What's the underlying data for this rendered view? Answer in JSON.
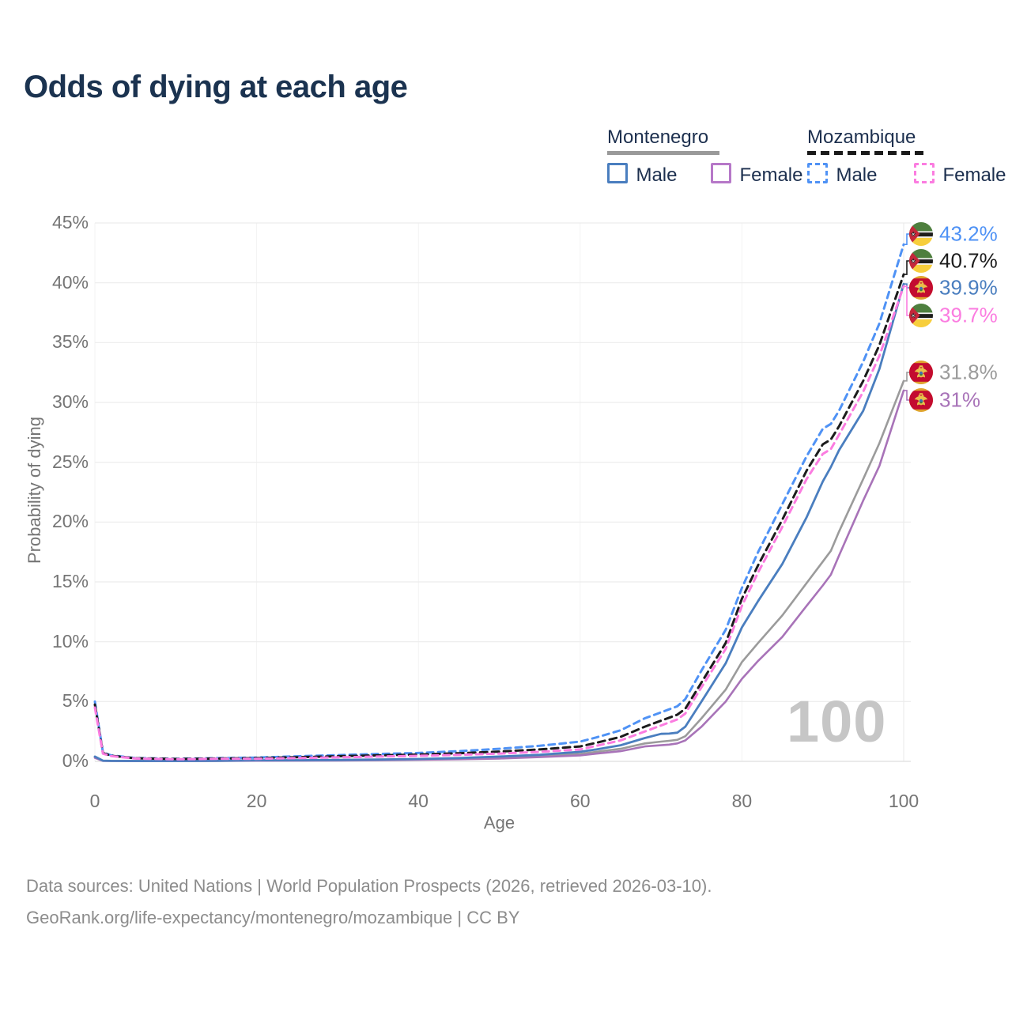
{
  "title": "Odds of dying at each age",
  "legend": {
    "montenegro": {
      "name": "Montenegro",
      "male": "Male",
      "female": "Female"
    },
    "mozambique": {
      "name": "Mozambique",
      "male": "Male",
      "female": "Female"
    }
  },
  "axis": {
    "x_label": "Age",
    "y_label": "Probability of dying"
  },
  "watermark": "100",
  "footer": {
    "line1": "Data sources: United Nations | World Population Prospects (2026, retrieved 2026-03-10).",
    "line2": "GeoRank.org/life-expectancy/montenegro/mozambique | CC BY"
  },
  "colors": {
    "title_text": "#1b3350",
    "legend_text": "#1c2f4e",
    "tick_text": "#757575",
    "footer_text": "#8c8c8c",
    "watermark": "#c6c6c6",
    "grid_horizontal": "#ececec",
    "grid_vertical": "#f3f3f3",
    "montenegro_male": "#4a7ebf",
    "montenegro_female": "#a873b8",
    "montenegro_both": "#9b9b9b",
    "mozambique_male": "#4f92f5",
    "mozambique_female": "#fb7ce0",
    "mozambique_both": "#1c1c1c"
  },
  "chart_data": {
    "type": "line",
    "title": "Odds of dying at each age",
    "xlabel": "Age",
    "ylabel": "Probability of dying",
    "xlim": [
      0,
      100
    ],
    "ylim": [
      0,
      45
    ],
    "x_ticks": [
      0,
      20,
      40,
      60,
      80,
      100
    ],
    "x_tick_labels": [
      "0",
      "20",
      "40",
      "60",
      "80",
      "100"
    ],
    "y_ticks": [
      0,
      5,
      10,
      15,
      20,
      25,
      30,
      35,
      40,
      45
    ],
    "y_tick_labels": [
      "0%",
      "5%",
      "10%",
      "15%",
      "20%",
      "25%",
      "30%",
      "35%",
      "40%",
      "45%"
    ],
    "grid": "horizontal-strong-vertical-faint",
    "legend_position": "top-right",
    "x": [
      0,
      1,
      2,
      5,
      10,
      15,
      20,
      25,
      30,
      35,
      40,
      45,
      50,
      55,
      60,
      62,
      65,
      68,
      70,
      71,
      72,
      73,
      75,
      78,
      80,
      82,
      85,
      88,
      90,
      91,
      92,
      95,
      97,
      100
    ],
    "series": [
      {
        "id": "moz_male",
        "name": "Mozambique Male",
        "country": "Mozambique",
        "sex": "male",
        "style": "dashed",
        "color": "#4f92f5",
        "end_label": "43.2%",
        "flag": "mozambique",
        "values": [
          5.0,
          0.75,
          0.5,
          0.28,
          0.22,
          0.27,
          0.32,
          0.42,
          0.52,
          0.62,
          0.7,
          0.85,
          1.05,
          1.3,
          1.65,
          2.0,
          2.6,
          3.6,
          4.1,
          4.35,
          4.6,
          5.2,
          7.6,
          11.0,
          14.5,
          17.5,
          21.5,
          25.5,
          27.8,
          28.2,
          29.3,
          33.4,
          36.6,
          43.2
        ]
      },
      {
        "id": "moz_both",
        "name": "Mozambique Both sexes",
        "country": "Mozambique",
        "sex": "both",
        "style": "dashed",
        "color": "#1c1c1c",
        "end_label": "40.7%",
        "flag": "mozambique",
        "values": [
          4.75,
          0.7,
          0.47,
          0.26,
          0.2,
          0.24,
          0.27,
          0.35,
          0.43,
          0.5,
          0.57,
          0.68,
          0.82,
          1.0,
          1.25,
          1.55,
          2.05,
          2.9,
          3.4,
          3.65,
          3.9,
          4.4,
          6.6,
          9.9,
          13.6,
          16.4,
          20.2,
          24.3,
          26.5,
          26.9,
          28.0,
          31.8,
          34.8,
          40.7
        ]
      },
      {
        "id": "moz_female",
        "name": "Mozambique Female",
        "country": "Mozambique",
        "sex": "female",
        "style": "dashed",
        "color": "#fb7ce0",
        "end_label": "39.7%",
        "flag": "mozambique",
        "values": [
          4.5,
          0.65,
          0.44,
          0.24,
          0.18,
          0.21,
          0.22,
          0.28,
          0.34,
          0.4,
          0.46,
          0.55,
          0.65,
          0.8,
          1.0,
          1.3,
          1.75,
          2.5,
          3.0,
          3.25,
          3.5,
          4.0,
          6.2,
          9.4,
          13.0,
          15.8,
          19.6,
          23.6,
          25.7,
          26.1,
          27.3,
          30.9,
          33.9,
          39.7
        ]
      },
      {
        "id": "mne_male",
        "name": "Montenegro Male",
        "country": "Montenegro",
        "sex": "male",
        "style": "solid",
        "color": "#4a7ebf",
        "end_label": "39.9%",
        "flag": "montenegro",
        "values": [
          0.4,
          0.06,
          0.04,
          0.03,
          0.03,
          0.05,
          0.09,
          0.1,
          0.12,
          0.15,
          0.2,
          0.28,
          0.4,
          0.55,
          0.8,
          1.0,
          1.35,
          1.95,
          2.3,
          2.32,
          2.4,
          2.9,
          5.0,
          8.2,
          11.2,
          13.4,
          16.5,
          20.4,
          23.4,
          24.6,
          26.0,
          29.3,
          32.8,
          39.9
        ]
      },
      {
        "id": "mne_both",
        "name": "Montenegro Both sexes",
        "country": "Montenegro",
        "sex": "both",
        "style": "solid",
        "color": "#9b9b9b",
        "end_label": "31.8%",
        "flag": "montenegro",
        "values": [
          0.35,
          0.05,
          0.04,
          0.03,
          0.03,
          0.04,
          0.07,
          0.08,
          0.1,
          0.12,
          0.16,
          0.23,
          0.32,
          0.45,
          0.62,
          0.8,
          1.05,
          1.5,
          1.65,
          1.72,
          1.8,
          2.1,
          3.6,
          6.0,
          8.3,
          9.9,
          12.2,
          14.9,
          16.7,
          17.6,
          19.2,
          23.6,
          26.6,
          31.8
        ]
      },
      {
        "id": "mne_female",
        "name": "Montenegro Female",
        "country": "Montenegro",
        "sex": "female",
        "style": "solid",
        "color": "#a873b8",
        "end_label": "31%",
        "flag": "montenegro",
        "values": [
          0.3,
          0.04,
          0.03,
          0.02,
          0.02,
          0.03,
          0.05,
          0.06,
          0.07,
          0.09,
          0.13,
          0.18,
          0.24,
          0.36,
          0.5,
          0.65,
          0.85,
          1.25,
          1.35,
          1.4,
          1.5,
          1.75,
          2.9,
          5.0,
          6.9,
          8.4,
          10.4,
          13.0,
          14.7,
          15.6,
          17.2,
          21.8,
          24.7,
          31.0
        ]
      }
    ],
    "end_labels": [
      {
        "series": "moz_male",
        "text": "43.2%",
        "flag": "mozambique"
      },
      {
        "series": "moz_both",
        "text": "40.7%",
        "flag": "mozambique"
      },
      {
        "series": "mne_male",
        "text": "39.9%",
        "flag": "montenegro"
      },
      {
        "series": "moz_female",
        "text": "39.7%",
        "flag": "mozambique"
      },
      {
        "series": "mne_both",
        "text": "31.8%",
        "flag": "montenegro"
      },
      {
        "series": "mne_female",
        "text": "31%",
        "flag": "montenegro"
      }
    ]
  }
}
